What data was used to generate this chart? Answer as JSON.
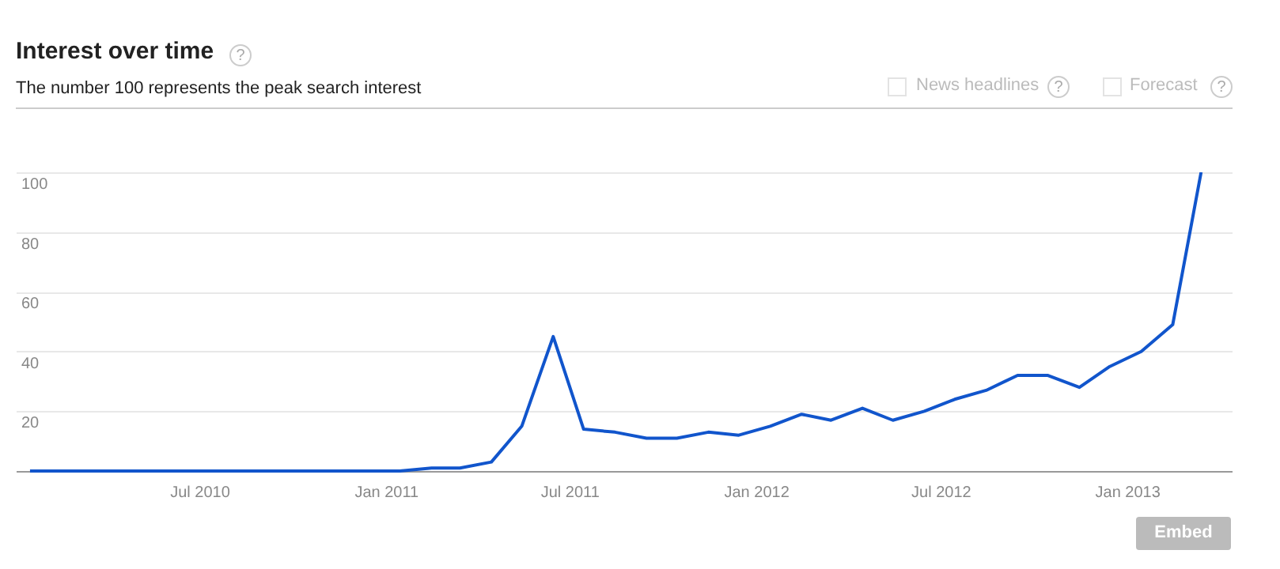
{
  "chart_data": {
    "type": "line",
    "title": "Interest over time",
    "subtitle": "The number 100 represents the peak search interest",
    "annotations": [
      "?",
      "News headlines",
      "?",
      "Forecast",
      "?",
      "Embed"
    ],
    "x": [
      "2010-01-15",
      "2010-02-15",
      "2010-03-15",
      "2010-04-15",
      "2010-05-15",
      "2010-06-15",
      "2010-07-15",
      "2010-08-15",
      "2010-09-15",
      "2010-10-15",
      "2010-11-15",
      "2010-12-15",
      "2011-01-15",
      "2011-02-15",
      "2011-03-15",
      "2011-04-15",
      "2011-05-15",
      "2011-06-15",
      "2011-07-15",
      "2011-08-15",
      "2011-09-15",
      "2011-10-15",
      "2011-11-15",
      "2011-12-15",
      "2012-01-15",
      "2012-02-15",
      "2012-03-15",
      "2012-04-15",
      "2012-05-15",
      "2012-06-15",
      "2012-07-15",
      "2012-08-15",
      "2012-09-15",
      "2012-10-15",
      "2012-11-15",
      "2012-12-15",
      "2013-01-15",
      "2013-02-15",
      "2013-03-15"
    ],
    "series": [
      {
        "color": "#1155cc",
        "values": [
          0,
          0,
          0,
          0,
          0,
          0,
          0,
          0,
          0,
          0,
          0,
          0,
          0,
          1,
          1,
          3,
          15,
          45,
          14,
          13,
          11,
          11,
          13,
          12,
          15,
          19,
          17,
          21,
          17,
          20,
          24,
          27,
          32,
          32,
          28,
          35,
          40,
          49,
          100
        ]
      }
    ],
    "xlim": [
      "2010-01-01",
      "2013-04-15"
    ],
    "xticks": [
      {
        "value": "2010-07-01",
        "label": "Jul 2010"
      },
      {
        "value": "2011-01-01",
        "label": "Jan 2011"
      },
      {
        "value": "2011-07-01",
        "label": "Jul 2011"
      },
      {
        "value": "2012-01-01",
        "label": "Jan 2012"
      },
      {
        "value": "2012-07-01",
        "label": "Jul 2012"
      },
      {
        "value": "2013-01-01",
        "label": "Jan 2013"
      }
    ],
    "ylim": [
      0,
      100
    ],
    "yticks": [
      20,
      40,
      60,
      80,
      100
    ],
    "grid": "y",
    "legend": false,
    "marker": "none",
    "line_style": "solid"
  }
}
